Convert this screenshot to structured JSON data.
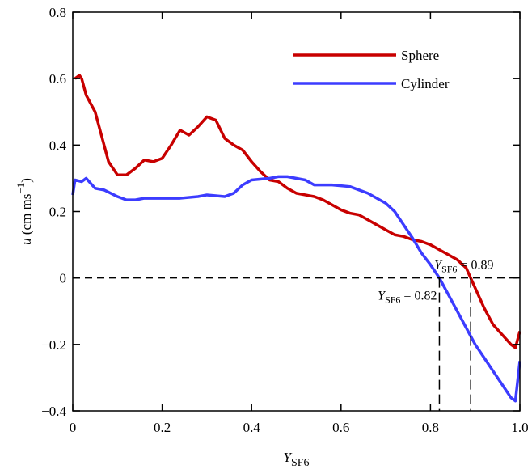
{
  "chart_data": {
    "type": "line",
    "x_label": {
      "main": "Y",
      "sub": "SF6"
    },
    "y_label": {
      "main": "u",
      "unit": " (cm ms",
      "sup": "−1",
      "close": ")"
    },
    "xlim": [
      0,
      1
    ],
    "ylim": [
      -0.4,
      0.8
    ],
    "xticks": [
      0,
      0.2,
      0.4,
      0.6,
      0.8,
      {
        "value": 1,
        "label": "1.0"
      }
    ],
    "yticks": [
      {
        "value": -0.4,
        "label": "−0.4"
      },
      {
        "value": -0.2,
        "label": "−0.2"
      },
      0,
      0.2,
      0.4,
      0.6,
      0.8
    ],
    "hline": 0,
    "legend": "upper right",
    "annotations": [
      {
        "x": 0.82,
        "main": "Y",
        "sub": "SF6",
        "rest": " = 0.82"
      },
      {
        "x": 0.89,
        "main": "Y",
        "sub": "SF6",
        "rest": " = 0.89"
      }
    ],
    "series": [
      {
        "name": "Sphere",
        "color": "#c80000",
        "x": [
          0.005,
          0.015,
          0.02,
          0.03,
          0.05,
          0.07,
          0.08,
          0.1,
          0.12,
          0.14,
          0.16,
          0.18,
          0.2,
          0.22,
          0.24,
          0.26,
          0.28,
          0.3,
          0.32,
          0.34,
          0.36,
          0.38,
          0.4,
          0.42,
          0.44,
          0.46,
          0.48,
          0.5,
          0.52,
          0.54,
          0.56,
          0.58,
          0.6,
          0.62,
          0.64,
          0.66,
          0.68,
          0.7,
          0.72,
          0.74,
          0.76,
          0.78,
          0.8,
          0.82,
          0.84,
          0.86,
          0.88,
          0.89,
          0.9,
          0.92,
          0.94,
          0.96,
          0.98,
          0.99,
          1.0
        ],
        "values": [
          0.6,
          0.61,
          0.6,
          0.55,
          0.5,
          0.4,
          0.35,
          0.31,
          0.31,
          0.33,
          0.355,
          0.35,
          0.36,
          0.4,
          0.445,
          0.43,
          0.455,
          0.485,
          0.475,
          0.42,
          0.4,
          0.385,
          0.35,
          0.32,
          0.295,
          0.29,
          0.27,
          0.255,
          0.25,
          0.245,
          0.235,
          0.22,
          0.205,
          0.195,
          0.19,
          0.175,
          0.16,
          0.145,
          0.13,
          0.125,
          0.115,
          0.11,
          0.1,
          0.085,
          0.07,
          0.055,
          0.03,
          0.0,
          -0.03,
          -0.09,
          -0.14,
          -0.17,
          -0.2,
          -0.21,
          -0.16
        ]
      },
      {
        "name": "Cylinder",
        "color": "#3c3cff",
        "x": [
          0,
          0.005,
          0.02,
          0.03,
          0.05,
          0.07,
          0.1,
          0.12,
          0.14,
          0.16,
          0.2,
          0.24,
          0.28,
          0.3,
          0.34,
          0.36,
          0.38,
          0.4,
          0.44,
          0.46,
          0.48,
          0.52,
          0.54,
          0.58,
          0.62,
          0.66,
          0.7,
          0.72,
          0.74,
          0.76,
          0.78,
          0.8,
          0.82,
          0.84,
          0.86,
          0.88,
          0.9,
          0.92,
          0.94,
          0.96,
          0.98,
          0.99,
          1.0
        ],
        "values": [
          0.25,
          0.295,
          0.29,
          0.3,
          0.27,
          0.265,
          0.245,
          0.235,
          0.235,
          0.24,
          0.24,
          0.24,
          0.245,
          0.25,
          0.245,
          0.255,
          0.28,
          0.295,
          0.3,
          0.305,
          0.305,
          0.295,
          0.28,
          0.28,
          0.275,
          0.255,
          0.225,
          0.2,
          0.16,
          0.12,
          0.075,
          0.04,
          0.0,
          -0.05,
          -0.1,
          -0.15,
          -0.2,
          -0.24,
          -0.28,
          -0.32,
          -0.36,
          -0.37,
          -0.25
        ]
      }
    ]
  }
}
